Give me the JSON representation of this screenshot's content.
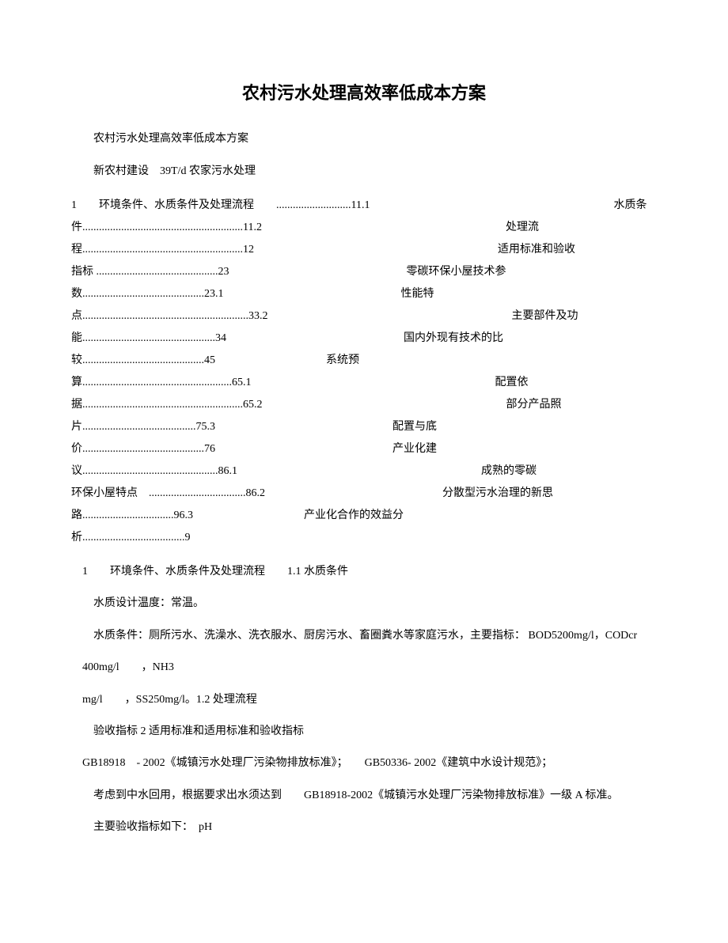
{
  "title": "农村污水处理高效率低成本方案",
  "p1": "农村污水处理高效率低成本方案",
  "p2": "新农村建设　39T/d 农家污水处理",
  "toc": {
    "l1a": "1　　环境条件、水质条件及处理流程　　...........................11.1",
    "l1b": "水质条",
    "l2a": "件..........................................................11.2",
    "l2b": "处理流",
    "l3a": "程..........................................................12",
    "l3b": "适用标准和验收",
    "l4a": "指标 ............................................23",
    "l4b": "零碳环保小屋技术参",
    "l5a": "数............................................23.1",
    "l5b": "性能特",
    "l6a": "点............................................................33.2",
    "l6b": "主要部件及功",
    "l7a": "能................................................34",
    "l7b": "国内外现有技术的比",
    "l8a": "较............................................45",
    "l8b": "系统预",
    "l9a": "算......................................................65.1",
    "l9b": "配置依",
    "l10a": "据..........................................................65.2",
    "l10b": "部分产品照",
    "l11a": "片.........................................75.3",
    "l11b": "配置与底",
    "l12a": "价............................................76",
    "l12b": "产业化建",
    "l13a": "议.................................................86.1",
    "l13b": "成熟的零碳",
    "l14a": "环保小屋特点　...................................86.2",
    "l14b": "分散型污水治理的新思",
    "l15a": "路.................................96.3",
    "l15b": "产业化合作的效益分",
    "l16a": "析.....................................9"
  },
  "s1": "1　　环境条件、水质条件及处理流程　　1.1 水质条件",
  "s2": "水质设计温度：常温。",
  "s3": "水质条件：厕所污水、洗澡水、洗衣服水、厨房污水、畜圈粪水等家庭污水，主要指标： BOD5200mg/l，CODcr",
  "s4": "400mg/l　　，NH3",
  "s5": "mg/l　　，SS250mg/l。1.2 处理流程",
  "s6": "验收指标  2 适用标准和适用标准和验收指标",
  "s7": "GB18918　- 2002《城镇污水处理厂污染物排放标准》；　　GB50336- 2002《建筑中水设计规范》；",
  "s8": "考虑到中水回用，根据要求出水须达到　　GB18918-2002《城镇污水处理厂污染物排放标准》一级  A 标准。",
  "s9": "主要验收指标如下：　pH"
}
